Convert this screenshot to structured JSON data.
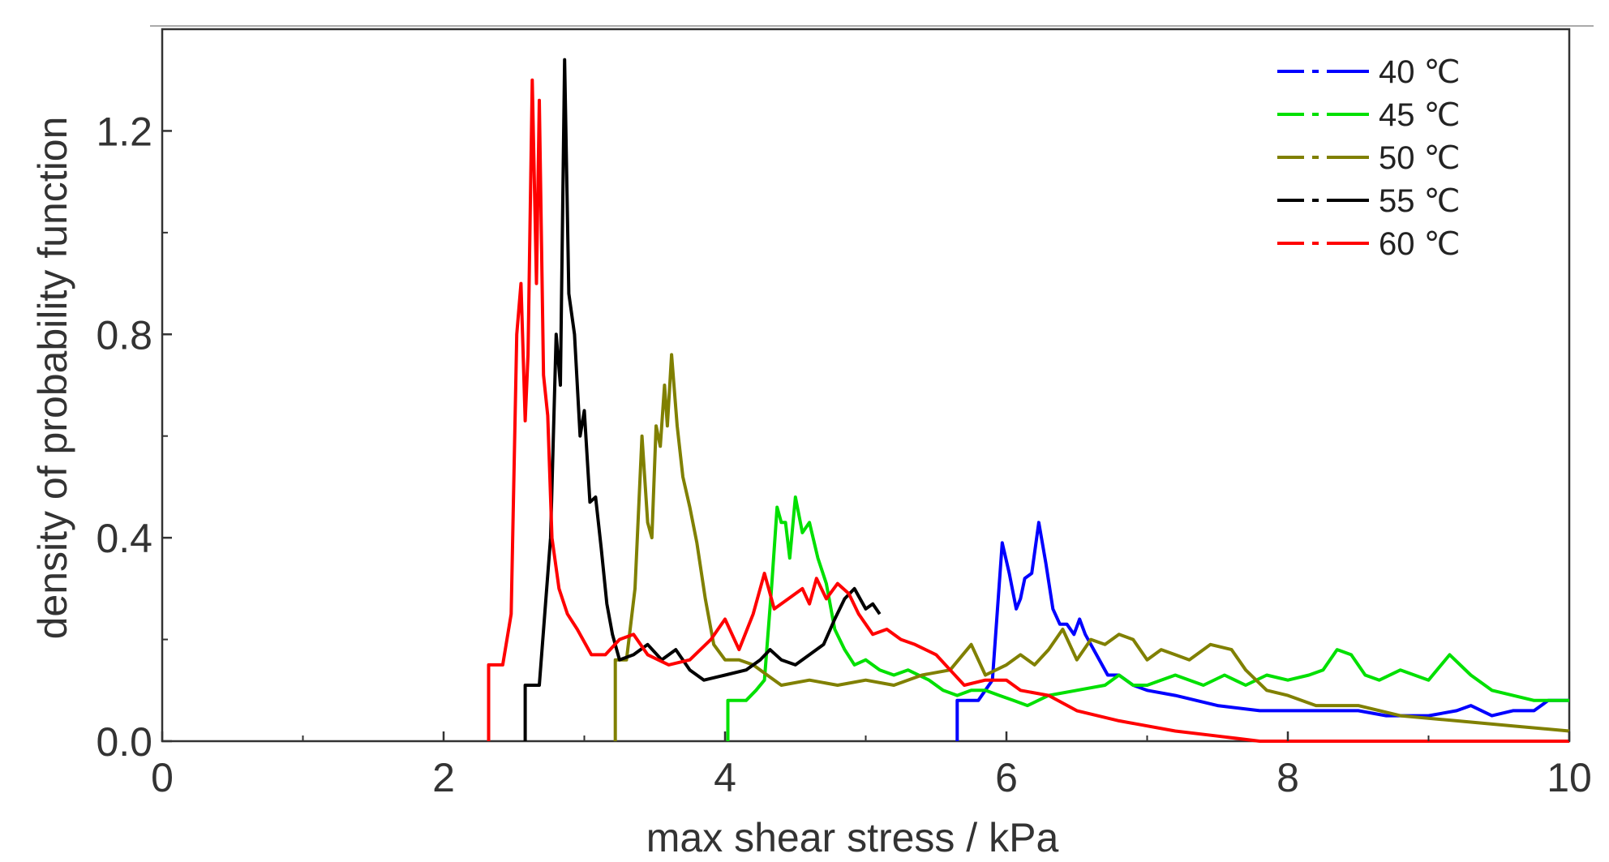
{
  "chart_data": {
    "type": "line",
    "title": "",
    "xlabel": "max shear stress / kPa",
    "ylabel": "density of probability function",
    "xlim": [
      0,
      10
    ],
    "ylim": [
      0,
      1.4
    ],
    "x_ticks": [
      0,
      2,
      4,
      6,
      8,
      10
    ],
    "x_tick_labels": [
      "0",
      "2",
      "4",
      "6",
      "8",
      "10"
    ],
    "y_ticks": [
      0.0,
      0.4,
      0.8,
      1.2
    ],
    "y_tick_labels": [
      "0.0",
      "0.4",
      "0.8",
      "1.2"
    ],
    "grid": false,
    "legend_position": "top-right",
    "series": [
      {
        "name": "40 ℃",
        "color": "#0000ff",
        "points": [
          [
            5.65,
            0
          ],
          [
            5.65,
            0.08
          ],
          [
            5.8,
            0.08
          ],
          [
            5.9,
            0.12
          ],
          [
            5.97,
            0.39
          ],
          [
            6.02,
            0.33
          ],
          [
            6.07,
            0.26
          ],
          [
            6.1,
            0.28
          ],
          [
            6.13,
            0.32
          ],
          [
            6.18,
            0.33
          ],
          [
            6.23,
            0.43
          ],
          [
            6.28,
            0.35
          ],
          [
            6.33,
            0.26
          ],
          [
            6.38,
            0.23
          ],
          [
            6.43,
            0.23
          ],
          [
            6.48,
            0.21
          ],
          [
            6.52,
            0.24
          ],
          [
            6.56,
            0.21
          ],
          [
            6.62,
            0.18
          ],
          [
            6.72,
            0.13
          ],
          [
            6.8,
            0.13
          ],
          [
            6.9,
            0.11
          ],
          [
            7.0,
            0.1
          ],
          [
            7.2,
            0.09
          ],
          [
            7.5,
            0.07
          ],
          [
            7.8,
            0.06
          ],
          [
            8.0,
            0.06
          ],
          [
            8.3,
            0.06
          ],
          [
            8.5,
            0.06
          ],
          [
            8.7,
            0.05
          ],
          [
            9.0,
            0.05
          ],
          [
            9.2,
            0.06
          ],
          [
            9.3,
            0.07
          ],
          [
            9.45,
            0.05
          ],
          [
            9.6,
            0.06
          ],
          [
            9.75,
            0.06
          ],
          [
            9.85,
            0.08
          ],
          [
            10.0,
            0.08
          ]
        ]
      },
      {
        "name": "45 ℃",
        "color": "#00e000",
        "points": [
          [
            4.02,
            0
          ],
          [
            4.02,
            0.08
          ],
          [
            4.15,
            0.08
          ],
          [
            4.22,
            0.1
          ],
          [
            4.28,
            0.12
          ],
          [
            4.33,
            0.3
          ],
          [
            4.37,
            0.46
          ],
          [
            4.4,
            0.43
          ],
          [
            4.43,
            0.43
          ],
          [
            4.46,
            0.36
          ],
          [
            4.5,
            0.48
          ],
          [
            4.55,
            0.41
          ],
          [
            4.6,
            0.43
          ],
          [
            4.66,
            0.36
          ],
          [
            4.72,
            0.31
          ],
          [
            4.78,
            0.22
          ],
          [
            4.85,
            0.18
          ],
          [
            4.92,
            0.15
          ],
          [
            5.0,
            0.16
          ],
          [
            5.1,
            0.14
          ],
          [
            5.2,
            0.13
          ],
          [
            5.3,
            0.14
          ],
          [
            5.45,
            0.12
          ],
          [
            5.55,
            0.1
          ],
          [
            5.65,
            0.09
          ],
          [
            5.75,
            0.1
          ],
          [
            5.85,
            0.1
          ],
          [
            5.95,
            0.09
          ],
          [
            6.05,
            0.08
          ],
          [
            6.15,
            0.07
          ],
          [
            6.3,
            0.09
          ],
          [
            6.5,
            0.1
          ],
          [
            6.7,
            0.11
          ],
          [
            6.8,
            0.13
          ],
          [
            6.9,
            0.11
          ],
          [
            7.0,
            0.11
          ],
          [
            7.1,
            0.12
          ],
          [
            7.2,
            0.13
          ],
          [
            7.3,
            0.12
          ],
          [
            7.4,
            0.11
          ],
          [
            7.55,
            0.13
          ],
          [
            7.7,
            0.11
          ],
          [
            7.85,
            0.13
          ],
          [
            8.0,
            0.12
          ],
          [
            8.15,
            0.13
          ],
          [
            8.25,
            0.14
          ],
          [
            8.35,
            0.18
          ],
          [
            8.45,
            0.17
          ],
          [
            8.55,
            0.13
          ],
          [
            8.65,
            0.12
          ],
          [
            8.8,
            0.14
          ],
          [
            9.0,
            0.12
          ],
          [
            9.15,
            0.17
          ],
          [
            9.3,
            0.13
          ],
          [
            9.45,
            0.1
          ],
          [
            9.6,
            0.09
          ],
          [
            9.75,
            0.08
          ],
          [
            9.9,
            0.08
          ],
          [
            10.0,
            0.08
          ]
        ]
      },
      {
        "name": "50 ℃",
        "color": "#808000",
        "points": [
          [
            3.22,
            0
          ],
          [
            3.22,
            0.16
          ],
          [
            3.3,
            0.16
          ],
          [
            3.36,
            0.3
          ],
          [
            3.41,
            0.6
          ],
          [
            3.45,
            0.43
          ],
          [
            3.48,
            0.4
          ],
          [
            3.51,
            0.62
          ],
          [
            3.54,
            0.58
          ],
          [
            3.57,
            0.7
          ],
          [
            3.59,
            0.62
          ],
          [
            3.62,
            0.76
          ],
          [
            3.66,
            0.62
          ],
          [
            3.7,
            0.52
          ],
          [
            3.75,
            0.46
          ],
          [
            3.8,
            0.39
          ],
          [
            3.86,
            0.28
          ],
          [
            3.92,
            0.19
          ],
          [
            4.0,
            0.16
          ],
          [
            4.1,
            0.16
          ],
          [
            4.2,
            0.15
          ],
          [
            4.3,
            0.13
          ],
          [
            4.4,
            0.11
          ],
          [
            4.6,
            0.12
          ],
          [
            4.8,
            0.11
          ],
          [
            5.0,
            0.12
          ],
          [
            5.2,
            0.11
          ],
          [
            5.4,
            0.13
          ],
          [
            5.6,
            0.14
          ],
          [
            5.75,
            0.19
          ],
          [
            5.85,
            0.13
          ],
          [
            6.0,
            0.15
          ],
          [
            6.1,
            0.17
          ],
          [
            6.2,
            0.15
          ],
          [
            6.3,
            0.18
          ],
          [
            6.4,
            0.22
          ],
          [
            6.5,
            0.16
          ],
          [
            6.6,
            0.2
          ],
          [
            6.7,
            0.19
          ],
          [
            6.8,
            0.21
          ],
          [
            6.9,
            0.2
          ],
          [
            7.0,
            0.16
          ],
          [
            7.1,
            0.18
          ],
          [
            7.2,
            0.17
          ],
          [
            7.3,
            0.16
          ],
          [
            7.45,
            0.19
          ],
          [
            7.6,
            0.18
          ],
          [
            7.7,
            0.14
          ],
          [
            7.85,
            0.1
          ],
          [
            8.0,
            0.09
          ],
          [
            8.2,
            0.07
          ],
          [
            8.5,
            0.07
          ],
          [
            8.8,
            0.05
          ],
          [
            9.2,
            0.04
          ],
          [
            9.6,
            0.03
          ],
          [
            10.0,
            0.02
          ]
        ]
      },
      {
        "name": "55 ℃",
        "color": "#000000",
        "points": [
          [
            2.58,
            0
          ],
          [
            2.58,
            0.11
          ],
          [
            2.68,
            0.11
          ],
          [
            2.76,
            0.4
          ],
          [
            2.8,
            0.8
          ],
          [
            2.83,
            0.7
          ],
          [
            2.86,
            1.34
          ],
          [
            2.89,
            0.88
          ],
          [
            2.93,
            0.8
          ],
          [
            2.97,
            0.6
          ],
          [
            3.0,
            0.65
          ],
          [
            3.04,
            0.47
          ],
          [
            3.08,
            0.48
          ],
          [
            3.12,
            0.38
          ],
          [
            3.16,
            0.27
          ],
          [
            3.2,
            0.21
          ],
          [
            3.25,
            0.16
          ],
          [
            3.35,
            0.17
          ],
          [
            3.45,
            0.19
          ],
          [
            3.55,
            0.16
          ],
          [
            3.65,
            0.18
          ],
          [
            3.75,
            0.14
          ],
          [
            3.85,
            0.12
          ],
          [
            4.0,
            0.13
          ],
          [
            4.15,
            0.14
          ],
          [
            4.25,
            0.16
          ],
          [
            4.32,
            0.18
          ],
          [
            4.4,
            0.16
          ],
          [
            4.5,
            0.15
          ],
          [
            4.6,
            0.17
          ],
          [
            4.7,
            0.19
          ],
          [
            4.78,
            0.24
          ],
          [
            4.85,
            0.28
          ],
          [
            4.92,
            0.3
          ],
          [
            5.0,
            0.26
          ],
          [
            5.05,
            0.27
          ],
          [
            5.1,
            0.25
          ]
        ]
      },
      {
        "name": "60 ℃",
        "color": "#ff0000",
        "points": [
          [
            2.32,
            0
          ],
          [
            2.32,
            0.15
          ],
          [
            2.42,
            0.15
          ],
          [
            2.48,
            0.25
          ],
          [
            2.52,
            0.8
          ],
          [
            2.55,
            0.9
          ],
          [
            2.58,
            0.63
          ],
          [
            2.6,
            0.76
          ],
          [
            2.63,
            1.3
          ],
          [
            2.66,
            0.9
          ],
          [
            2.68,
            1.26
          ],
          [
            2.71,
            0.72
          ],
          [
            2.74,
            0.64
          ],
          [
            2.77,
            0.4
          ],
          [
            2.82,
            0.3
          ],
          [
            2.88,
            0.25
          ],
          [
            2.95,
            0.22
          ],
          [
            3.05,
            0.17
          ],
          [
            3.15,
            0.17
          ],
          [
            3.25,
            0.2
          ],
          [
            3.35,
            0.21
          ],
          [
            3.45,
            0.17
          ],
          [
            3.6,
            0.15
          ],
          [
            3.75,
            0.16
          ],
          [
            3.9,
            0.2
          ],
          [
            4.0,
            0.24
          ],
          [
            4.1,
            0.18
          ],
          [
            4.2,
            0.25
          ],
          [
            4.28,
            0.33
          ],
          [
            4.35,
            0.26
          ],
          [
            4.45,
            0.28
          ],
          [
            4.55,
            0.3
          ],
          [
            4.6,
            0.27
          ],
          [
            4.65,
            0.32
          ],
          [
            4.72,
            0.28
          ],
          [
            4.8,
            0.31
          ],
          [
            4.88,
            0.29
          ],
          [
            4.95,
            0.25
          ],
          [
            5.05,
            0.21
          ],
          [
            5.15,
            0.22
          ],
          [
            5.25,
            0.2
          ],
          [
            5.35,
            0.19
          ],
          [
            5.5,
            0.17
          ],
          [
            5.6,
            0.14
          ],
          [
            5.7,
            0.11
          ],
          [
            5.85,
            0.12
          ],
          [
            6.0,
            0.12
          ],
          [
            6.1,
            0.1
          ],
          [
            6.3,
            0.09
          ],
          [
            6.5,
            0.06
          ],
          [
            6.8,
            0.04
          ],
          [
            7.2,
            0.02
          ],
          [
            7.5,
            0.01
          ],
          [
            7.8,
            0
          ],
          [
            8.5,
            0
          ],
          [
            9.0,
            0
          ],
          [
            9.5,
            0
          ],
          [
            10.0,
            0
          ]
        ]
      }
    ]
  }
}
